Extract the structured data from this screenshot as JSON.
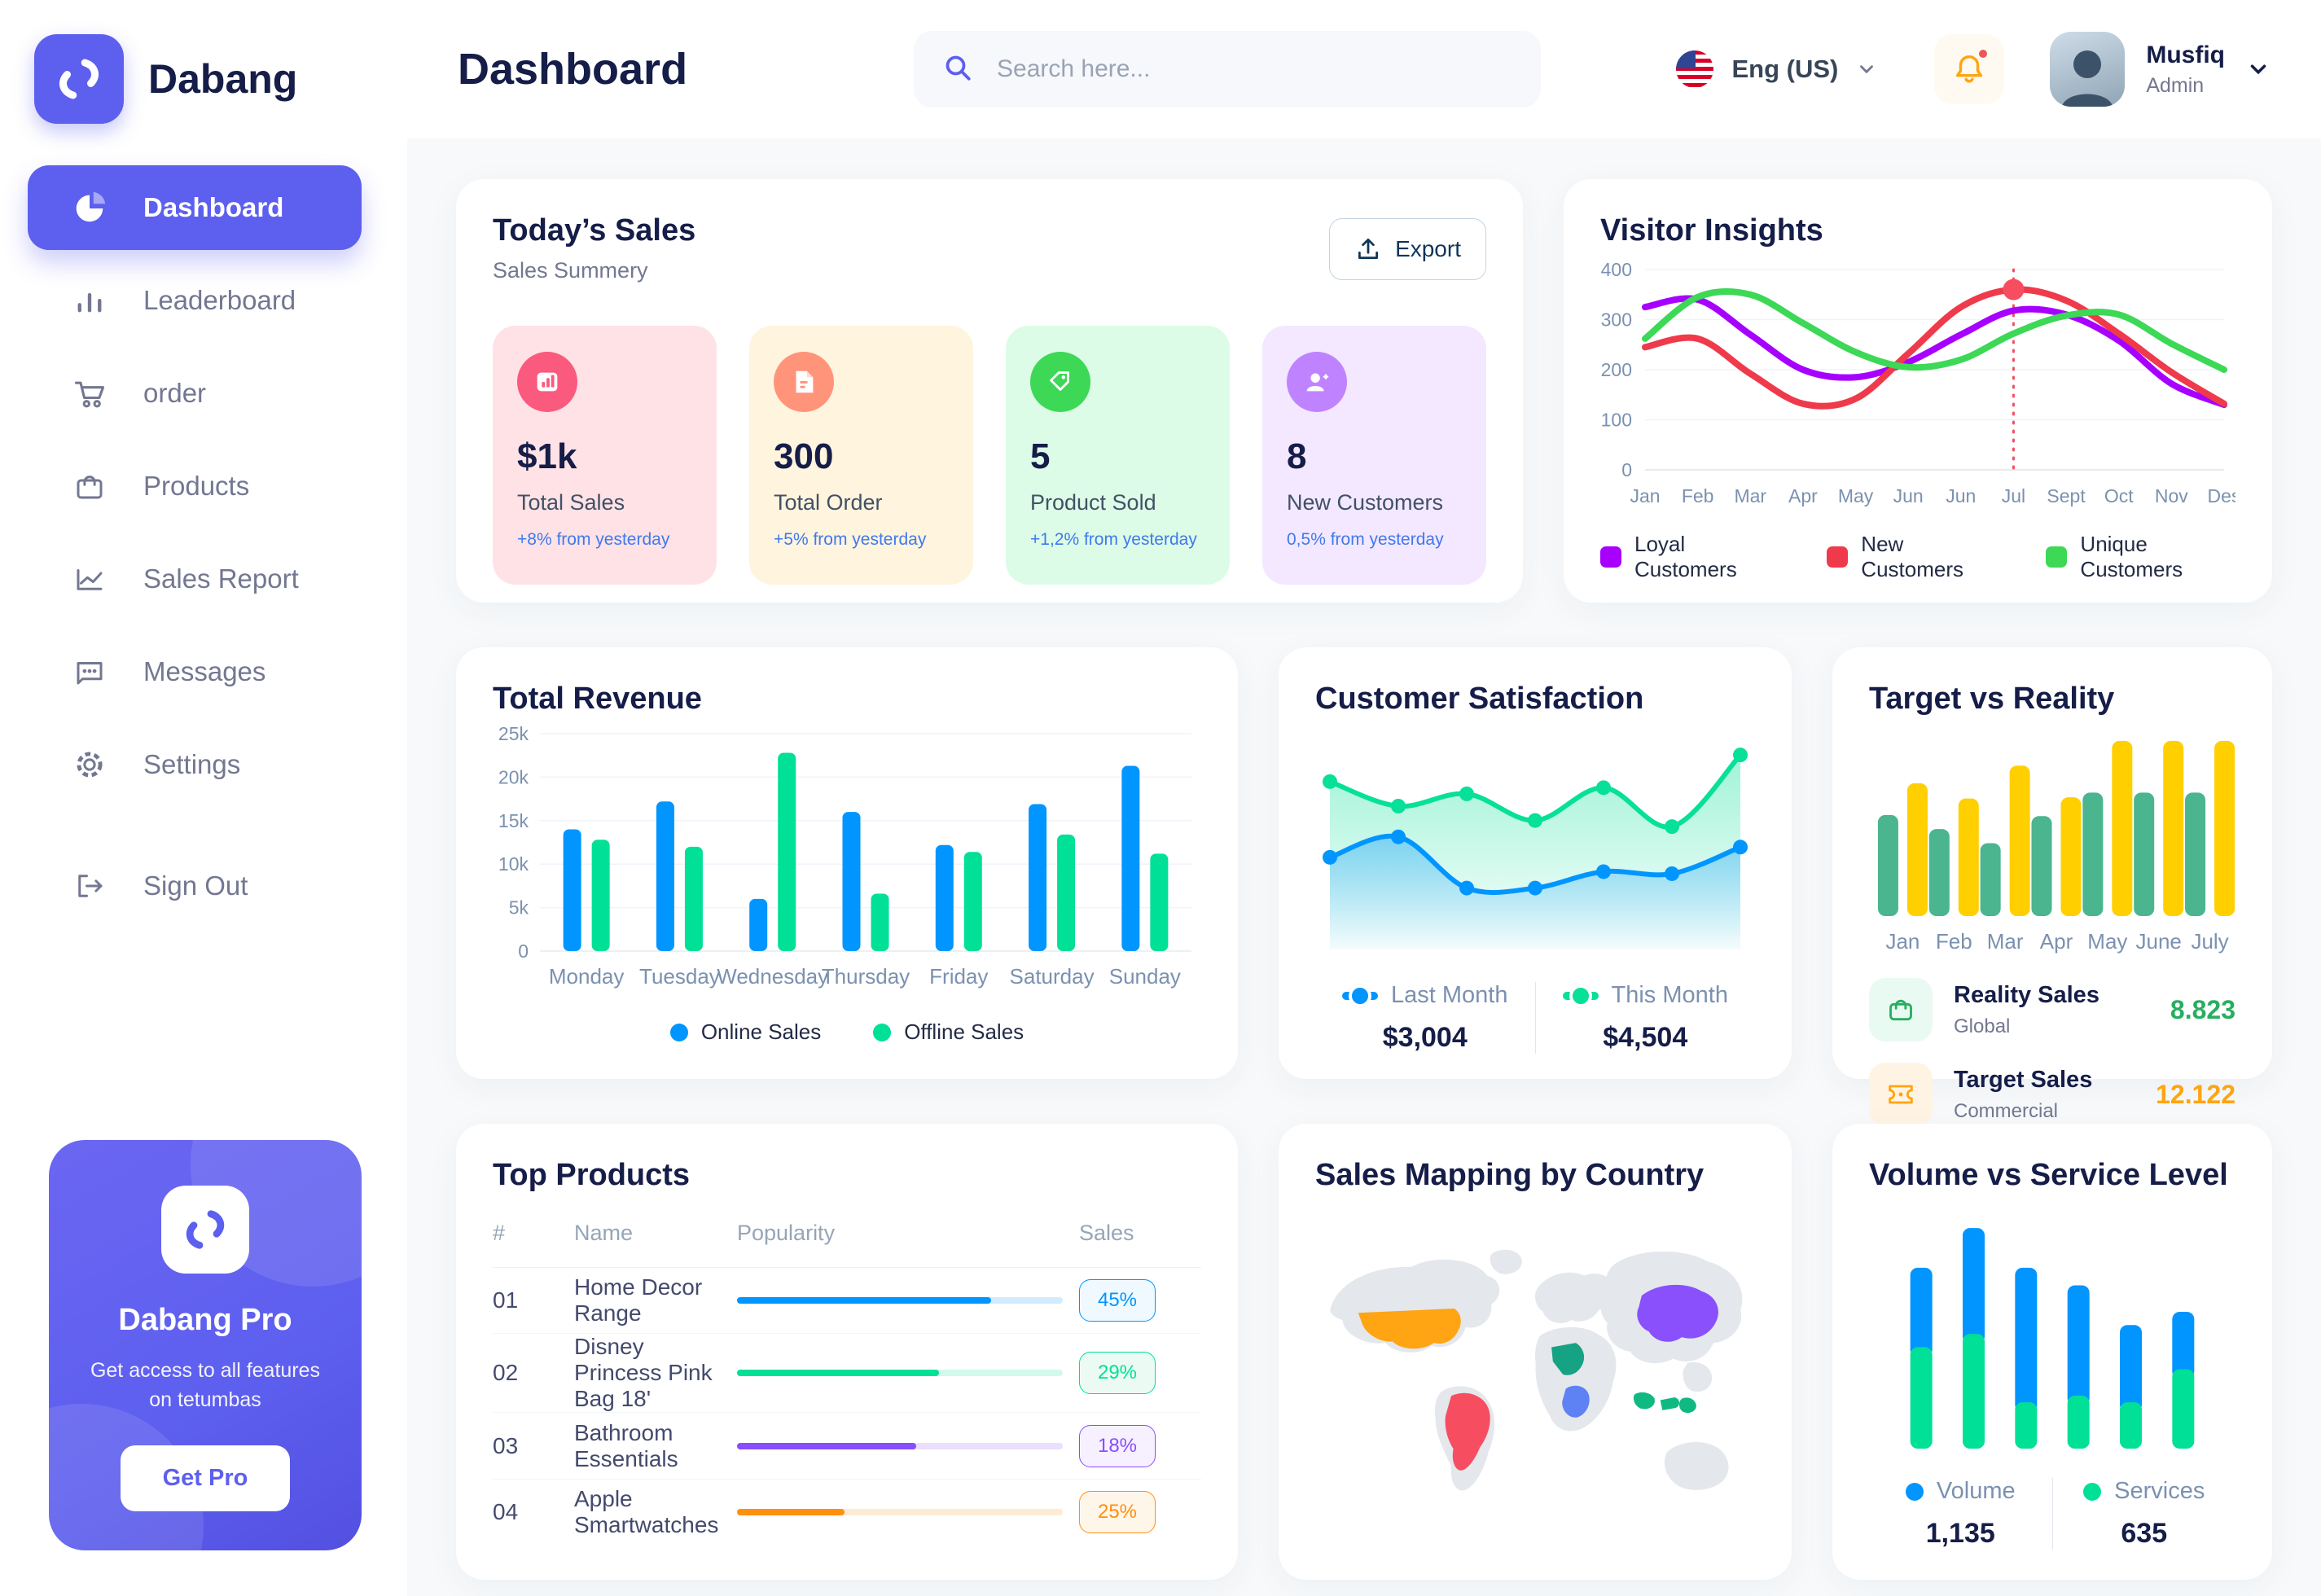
{
  "brand": {
    "name": "Dabang"
  },
  "header": {
    "title": "Dashboard",
    "search_placeholder": "Search here...",
    "language": "Eng (US)",
    "user": {
      "name": "Musfiq",
      "role": "Admin"
    }
  },
  "sidebar": {
    "items": [
      {
        "label": "Dashboard",
        "active": true
      },
      {
        "label": "Leaderboard"
      },
      {
        "label": "order"
      },
      {
        "label": "Products"
      },
      {
        "label": "Sales Report"
      },
      {
        "label": "Messages"
      },
      {
        "label": "Settings"
      },
      {
        "label": "Sign Out"
      }
    ],
    "promo": {
      "title": "Dabang Pro",
      "text": "Get access to all features on tetumbas",
      "button": "Get Pro"
    }
  },
  "today_sales": {
    "title": "Today’s Sales",
    "subtitle": "Sales Summery",
    "export_label": "Export",
    "cards": [
      {
        "value": "$1k",
        "label": "Total Sales",
        "delta": "+8% from yesterday",
        "bg": "#FFE2E5",
        "icon_bg": "#FA5A7D"
      },
      {
        "value": "300",
        "label": "Total Order",
        "delta": "+5% from yesterday",
        "bg": "#FFF4DE",
        "icon_bg": "#FF947A"
      },
      {
        "value": "5",
        "label": "Product Sold",
        "delta": "+1,2% from yesterday",
        "bg": "#DCFCE7",
        "icon_bg": "#3CD856"
      },
      {
        "value": "8",
        "label": "New Customers",
        "delta": "0,5% from yesterday",
        "bg": "#F3E8FF",
        "icon_bg": "#BF83FF"
      }
    ]
  },
  "chart_data": [
    {
      "id": "visitor_insights",
      "type": "line",
      "title": "Visitor Insights",
      "x": [
        "Jan",
        "Feb",
        "Mar",
        "Apr",
        "May",
        "Jun",
        "Jun",
        "Jul",
        "Sept",
        "Oct",
        "Nov",
        "Des"
      ],
      "yticks": [
        0,
        100,
        200,
        300,
        400
      ],
      "ylim": [
        0,
        400
      ],
      "legend_position": "bottom",
      "annotation": {
        "x_index": 7,
        "series": "New Customers"
      },
      "series": [
        {
          "name": "Loyal Customers",
          "color": "#A700FF",
          "values": [
            325,
            340,
            270,
            200,
            185,
            215,
            270,
            318,
            310,
            258,
            172,
            130
          ]
        },
        {
          "name": "New Customers",
          "color": "#EF3A4C",
          "values": [
            245,
            262,
            192,
            132,
            142,
            232,
            325,
            360,
            338,
            272,
            195,
            132
          ]
        },
        {
          "name": "Unique Customers",
          "color": "#3CD856",
          "values": [
            262,
            345,
            350,
            293,
            235,
            205,
            220,
            272,
            308,
            310,
            252,
            200
          ]
        }
      ]
    },
    {
      "id": "total_revenue",
      "type": "bar",
      "title": "Total Revenue",
      "categories": [
        "Monday",
        "Tuesday",
        "Wednesday",
        "Thursday",
        "Friday",
        "Saturday",
        "Sunday"
      ],
      "yticks": [
        0,
        5000,
        10000,
        15000,
        20000,
        25000
      ],
      "ytick_labels": [
        "0",
        "5k",
        "10k",
        "15k",
        "20k",
        "25k"
      ],
      "ylim": [
        0,
        25000
      ],
      "legend_position": "bottom",
      "series": [
        {
          "name": "Online Sales",
          "color": "#0095FF",
          "values": [
            14000,
            17200,
            6000,
            16000,
            12200,
            16900,
            21300
          ]
        },
        {
          "name": "Offline Sales",
          "color": "#00E096",
          "values": [
            12800,
            12000,
            22800,
            6600,
            11400,
            13400,
            11200
          ]
        }
      ]
    },
    {
      "id": "customer_satisfaction",
      "type": "area",
      "title": "Customer Satisfaction",
      "ylim": [
        0,
        105
      ],
      "legend_position": "bottom",
      "series": [
        {
          "name": "Last Month",
          "color": "#0095FF",
          "total": "$3,004",
          "values": [
            45,
            55,
            30,
            30,
            38,
            37,
            50
          ]
        },
        {
          "name": "This Month",
          "color": "#07E098",
          "total": "$4,504",
          "values": [
            82,
            70,
            76,
            63,
            79,
            60,
            95
          ]
        }
      ]
    },
    {
      "id": "target_vs_reality",
      "type": "bar",
      "title": "Target vs Reality",
      "categories": [
        "Jan",
        "Feb",
        "Mar",
        "Apr",
        "May",
        "June",
        "July"
      ],
      "ylim": [
        0,
        16
      ],
      "series": [
        {
          "name": "Reality Sales",
          "color": "#4AB58E",
          "values": [
            8.6,
            7.4,
            6.2,
            8.5,
            10.5,
            10.5,
            10.5
          ]
        },
        {
          "name": "Target Sales",
          "color": "#FFCF00",
          "values": [
            11.3,
            10.0,
            12.8,
            10.1,
            14.9,
            14.9,
            14.9
          ]
        }
      ],
      "legend": [
        {
          "label": "Reality Sales",
          "sublabel": "Global",
          "value": "8.823",
          "value_color": "#27AE60",
          "tile_bg": "#E9FAF3",
          "icon_color": "#27AE60"
        },
        {
          "label": "Target Sales",
          "sublabel": "Commercial",
          "value": "12.122",
          "value_color": "#FFA412",
          "tile_bg": "#FFF4E4",
          "icon_color": "#FFA412"
        }
      ]
    },
    {
      "id": "volume_vs_service",
      "type": "stacked_bar",
      "title": "Volume vs Service Level",
      "ylim": [
        0,
        110
      ],
      "legend_position": "bottom",
      "series": [
        {
          "name": "Volume",
          "color": "#0095FF",
          "total": "1,135",
          "values": [
            36,
            48,
            61,
            50,
            35,
            26
          ]
        },
        {
          "name": "Services",
          "color": "#00E096",
          "total": "635",
          "values": [
            46,
            52,
            21,
            24,
            21,
            36
          ]
        }
      ]
    }
  ],
  "top_products": {
    "title": "Top Products",
    "headers": [
      "#",
      "Name",
      "Popularity",
      "Sales"
    ],
    "rows": [
      {
        "num": "01",
        "name": "Home Decor Range",
        "popularity": 78,
        "sales": "45%",
        "color": "#0095FF",
        "badge_bg": "#F0F9FF"
      },
      {
        "num": "02",
        "name": "Disney Princess Pink Bag 18'",
        "popularity": 62,
        "sales": "29%",
        "color": "#00E096",
        "badge_bg": "#EBFBF3"
      },
      {
        "num": "03",
        "name": "Bathroom Essentials",
        "popularity": 55,
        "sales": "18%",
        "color": "#884DFF",
        "badge_bg": "#F6F0FF"
      },
      {
        "num": "04",
        "name": "Apple Smartwatches",
        "popularity": 33,
        "sales": "25%",
        "color": "#FF8F0D",
        "badge_bg": "#FFF6EA"
      }
    ]
  },
  "sales_map": {
    "title": "Sales Mapping by Country",
    "countries": [
      {
        "name": "United States",
        "color": "#FFA412"
      },
      {
        "name": "Brazil",
        "color": "#F64E60"
      },
      {
        "name": "Saudi Arabia",
        "color": "#16A383"
      },
      {
        "name": "DR Congo",
        "color": "#5E81F4"
      },
      {
        "name": "China",
        "color": "#8950FC"
      },
      {
        "name": "Indonesia",
        "color": "#10B981"
      }
    ]
  }
}
